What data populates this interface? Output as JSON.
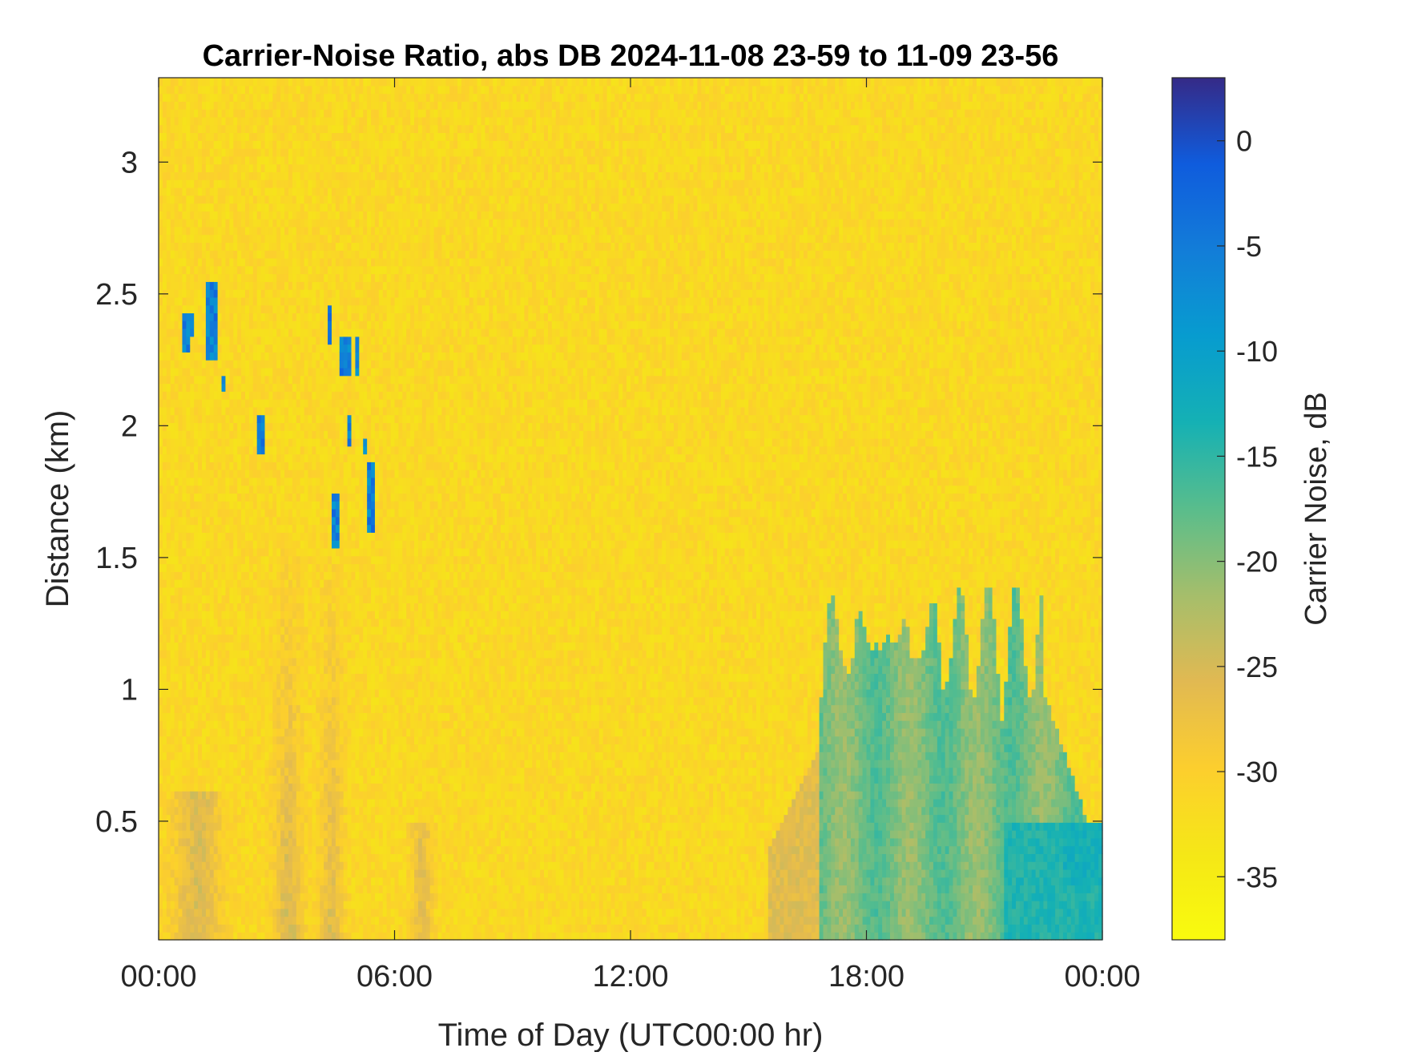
{
  "chart_data": {
    "type": "heatmap",
    "title": "Carrier-Noise Ratio, abs DB 2024-11-08 23-59 to 11-09 23-56",
    "xlabel": "Time of Day (UTC00:00 hr)",
    "ylabel": "Distance (km)",
    "colorbar_label": "Carrier Noise, dB",
    "x_ticks": [
      "00:00",
      "06:00",
      "12:00",
      "18:00",
      "00:00"
    ],
    "x_tick_hours": [
      0,
      6,
      12,
      18,
      24
    ],
    "xlim_hours": [
      0,
      24
    ],
    "y_ticks": [
      "0.5",
      "1",
      "1.5",
      "2",
      "2.5",
      "3"
    ],
    "y_tick_values": [
      0.5,
      1,
      1.5,
      2,
      2.5,
      3
    ],
    "ylim_km": [
      0.05,
      3.32
    ],
    "colorbar_ticks": [
      "0",
      "-5",
      "-10",
      "-15",
      "-20",
      "-25",
      "-30",
      "-35"
    ],
    "colorbar_tick_values": [
      0,
      -5,
      -10,
      -15,
      -20,
      -25,
      -30,
      -35
    ],
    "clim_db": [
      -38,
      3
    ],
    "colormap": "parula",
    "background_level_db": -31.5,
    "grid": false,
    "features": [
      {
        "kind": "layer",
        "t_start_h": 16.8,
        "t_end_h": 22.6,
        "top_km": 1.35,
        "level_db": -19
      },
      {
        "kind": "cells",
        "region": "0.5-5.5 h, 1.5-2.55 km",
        "level_db": -5
      },
      {
        "kind": "plume",
        "region": "0.5-7 h, 0-1.6 km",
        "level_db": -25
      }
    ]
  }
}
